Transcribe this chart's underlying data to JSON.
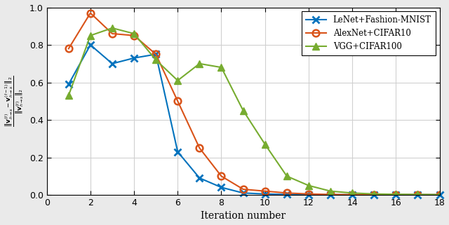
{
  "lenet_x": [
    1,
    2,
    3,
    4,
    5,
    6,
    7,
    8,
    9,
    10,
    11,
    12,
    13,
    14,
    15,
    16,
    17,
    18
  ],
  "lenet_y": [
    0.59,
    0.8,
    0.7,
    0.73,
    0.75,
    0.23,
    0.09,
    0.04,
    0.01,
    0.005,
    0.002,
    0.001,
    0.001,
    0.001,
    0.001,
    0.001,
    0.001,
    0.001
  ],
  "alexnet_x": [
    1,
    2,
    3,
    4,
    5,
    6,
    7,
    8,
    9,
    10,
    11,
    12,
    13,
    14,
    15,
    16,
    17,
    18
  ],
  "alexnet_y": [
    0.78,
    0.97,
    0.86,
    0.85,
    0.75,
    0.5,
    0.25,
    0.1,
    0.03,
    0.02,
    0.01,
    0.005,
    0.002,
    0.001,
    0.001,
    0.001,
    0.001,
    0.001
  ],
  "vgg_x": [
    1,
    2,
    3,
    4,
    5,
    6,
    7,
    8,
    9,
    10,
    11,
    12,
    13,
    14,
    15,
    16,
    17,
    18
  ],
  "vgg_y": [
    0.53,
    0.85,
    0.89,
    0.86,
    0.72,
    0.61,
    0.7,
    0.68,
    0.45,
    0.27,
    0.1,
    0.05,
    0.02,
    0.01,
    0.005,
    0.003,
    0.002,
    0.001
  ],
  "lenet_color": "#0072BD",
  "alexnet_color": "#D95319",
  "vgg_color": "#77AC30",
  "xlabel": "Iteration number",
  "ylim": [
    0,
    1.0
  ],
  "xlim": [
    0,
    18
  ],
  "xticks": [
    0,
    2,
    4,
    6,
    8,
    10,
    12,
    14,
    16,
    18
  ],
  "yticks": [
    0,
    0.2,
    0.4,
    0.6,
    0.8,
    1
  ],
  "legend_labels": [
    "LeNet+Fashion-MNIST",
    "AlexNet+CIFAR10",
    "VGG+CIFAR100"
  ],
  "lenet_marker": "x",
  "alexnet_marker": "o",
  "vgg_marker": "^",
  "linewidth": 1.5,
  "markersize": 7,
  "fig_background": "#EAEAEA",
  "axes_background": "#FFFFFF",
  "grid_color": "#D0D0D0"
}
